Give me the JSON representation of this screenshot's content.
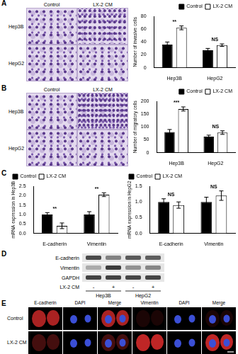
{
  "chart_data": [
    {
      "type": "bar",
      "y_label": "Number of invasive cells",
      "categories": [
        "Hep3B",
        "HepG2"
      ],
      "series": [
        {
          "name": "Control",
          "color": "#000000",
          "values": [
            36,
            27
          ],
          "errors": [
            4,
            3
          ]
        },
        {
          "name": "LX-2 CM",
          "color": "#ffffff",
          "values": [
            62,
            35
          ],
          "errors": [
            3,
            2
          ]
        }
      ],
      "ylim": [
        0,
        80
      ],
      "yticks": [
        0,
        20,
        40,
        60,
        80
      ],
      "grid": false,
      "legend": "upper right",
      "annotations": [
        {
          "category": "Hep3B",
          "text": "**"
        },
        {
          "category": "HepG2",
          "text": "NS"
        }
      ]
    },
    {
      "type": "bar",
      "y_label": "Number of migratory cells",
      "categories": [
        "Hep3B",
        "HepG2"
      ],
      "series": [
        {
          "name": "Control",
          "color": "#000000",
          "values": [
            80,
            62
          ],
          "errors": [
            10,
            6
          ]
        },
        {
          "name": "LX-2 CM",
          "color": "#ffffff",
          "values": [
            170,
            78
          ],
          "errors": [
            8,
            7
          ]
        }
      ],
      "ylim": [
        0,
        200
      ],
      "yticks": [
        0,
        50,
        100,
        150,
        200
      ],
      "grid": false,
      "legend": "upper right",
      "annotations": [
        {
          "category": "Hep3B",
          "text": "***"
        },
        {
          "category": "HepG2",
          "text": "NS"
        }
      ]
    },
    {
      "type": "bar",
      "y_label": "mRNA expression in Hep3B",
      "categories": [
        "E-cadherin",
        "Vimentin"
      ],
      "series": [
        {
          "name": "Control",
          "color": "#000000",
          "values": [
            1.0,
            1.0
          ],
          "errors": [
            0.1,
            0.15
          ]
        },
        {
          "name": "LX-2 CM",
          "color": "#ffffff",
          "values": [
            0.4,
            2.05
          ],
          "errors": [
            0.15,
            0.1
          ]
        }
      ],
      "ylim": [
        0,
        2.5
      ],
      "yticks": [
        {
          "value": 0,
          "label": "0.0"
        },
        0.5,
        {
          "value": 1,
          "label": "1.0"
        },
        1.5,
        {
          "value": 2,
          "label": "2.0"
        },
        2.5
      ],
      "grid": false,
      "legend": "upper left",
      "annotations": [
        {
          "category": "E-cadherin",
          "text": "**"
        },
        {
          "category": "Vimentin",
          "text": "**"
        }
      ]
    },
    {
      "type": "bar",
      "y_label": "mRNA expression in HepG2",
      "categories": [
        "E-cadherin",
        "Vimentin"
      ],
      "series": [
        {
          "name": "Control",
          "color": "#000000",
          "values": [
            1.0,
            1.0
          ],
          "errors": [
            0.1,
            0.15
          ]
        },
        {
          "name": "LX-2 CM",
          "color": "#ffffff",
          "values": [
            0.9,
            1.2
          ],
          "errors": [
            0.1,
            0.15
          ]
        }
      ],
      "ylim": [
        0,
        1.5
      ],
      "yticks": [
        {
          "value": 0,
          "label": "0.0"
        },
        0.5,
        {
          "value": 1,
          "label": "1.0"
        },
        1.5
      ],
      "grid": false,
      "legend": "upper left",
      "annotations": [
        {
          "category": "E-cadherin",
          "text": "NS"
        },
        {
          "category": "Vimentin",
          "text": "NS"
        }
      ]
    }
  ],
  "figure": {
    "letters": [
      "A",
      "B",
      "C",
      "D",
      "E"
    ],
    "micrographs": {
      "columns": [
        "Control",
        "LX-2 CM"
      ],
      "rows": [
        "Hep3B",
        "HepG2"
      ]
    },
    "blot": {
      "rows": [
        "E-cadherin",
        "Vimentin",
        "GAPDH"
      ],
      "treatment": "LX-2 CM",
      "lanes": [
        "-",
        "+",
        "-",
        "+"
      ],
      "groups": [
        "Hep3B",
        "HepG2"
      ]
    },
    "fluorescence": {
      "columns": [
        "E-cadherin",
        "DAPI",
        "Merge",
        "Vimentin",
        "DAPI",
        "Merge"
      ],
      "rows": [
        "Control",
        "LX-2 CM"
      ]
    }
  }
}
